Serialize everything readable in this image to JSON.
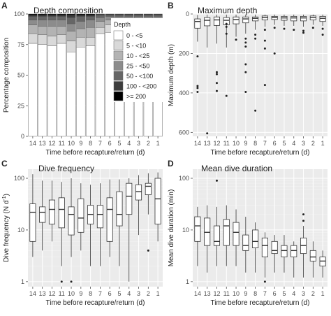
{
  "colors": {
    "panel_bg": "#ebebeb",
    "grid_major": "#ffffff",
    "box_fill": "#ffffff",
    "box_stroke": "#333333",
    "depth_bins": [
      "#ffffff",
      "#d9d9d9",
      "#b3b3b3",
      "#8c8c8c",
      "#666666",
      "#3d3d3d",
      "#000000"
    ]
  },
  "chart_data": [
    {
      "id": "A",
      "letter": "A",
      "type": "bar",
      "title": "Depth composition",
      "xlabel": "Time before recapture/return (d)",
      "ylabel": "Percentage composition",
      "categories": [
        "14",
        "13",
        "12",
        "11",
        "10",
        "9",
        "8",
        "7",
        "6",
        "5",
        "4",
        "3",
        "2",
        "1"
      ],
      "ylim": [
        0,
        100
      ],
      "yticks": [
        0,
        25,
        50,
        75,
        100
      ],
      "legend": {
        "title": "Depth",
        "position": "top-right"
      },
      "series": [
        {
          "name": "0 - <5",
          "values": [
            76,
            75,
            74,
            76,
            69,
            73,
            74,
            84,
            85,
            83,
            83,
            82,
            83,
            88
          ]
        },
        {
          "name": "5 - <10",
          "values": [
            8,
            8,
            8,
            7,
            9,
            8,
            7,
            5,
            6,
            6,
            7,
            7,
            6,
            4
          ]
        },
        {
          "name": "10 - <25",
          "values": [
            7,
            7,
            8,
            7,
            8,
            7,
            8,
            5,
            4,
            5,
            5,
            5,
            5,
            4
          ]
        },
        {
          "name": "25 - <50",
          "values": [
            4,
            5,
            5,
            5,
            6,
            6,
            6,
            3,
            3,
            4,
            3,
            4,
            4,
            2
          ]
        },
        {
          "name": "50 - <100",
          "values": [
            3,
            3,
            3,
            3,
            5,
            4,
            3,
            2,
            1,
            1,
            1,
            1,
            1,
            1
          ]
        },
        {
          "name": "100 - <200",
          "values": [
            1,
            1,
            1,
            1,
            2,
            1,
            1,
            1,
            1,
            1,
            1,
            1,
            1,
            1
          ]
        },
        {
          "name": ">= 200",
          "values": [
            1,
            1,
            1,
            1,
            1,
            1,
            1,
            0,
            0,
            0,
            0,
            0,
            0,
            0
          ]
        }
      ]
    },
    {
      "id": "B",
      "letter": "B",
      "type": "box",
      "title": "Maximum depth",
      "xlabel": "Time before recapture/return (d)",
      "ylabel": "Maximum depth (m)",
      "categories": [
        "14",
        "13",
        "12",
        "11",
        "10",
        "9",
        "8",
        "7",
        "6",
        "5",
        "4",
        "3",
        "2",
        "1"
      ],
      "ylim": [
        0,
        620
      ],
      "yreverse": true,
      "yticks": [
        0,
        200,
        400,
        600
      ],
      "boxes": [
        {
          "low": 5,
          "q1": 25,
          "median": 38,
          "q3": 72,
          "high": 140,
          "outliers": [
            215,
            365,
            375,
            395
          ]
        },
        {
          "low": 3,
          "q1": 18,
          "median": 32,
          "q3": 60,
          "high": 170,
          "outliers": [
            605
          ]
        },
        {
          "low": 3,
          "q1": 15,
          "median": 30,
          "q3": 58,
          "high": 150,
          "outliers": [
            295,
            305,
            350,
            390
          ]
        },
        {
          "low": 3,
          "q1": 18,
          "median": 32,
          "q3": 55,
          "high": 170,
          "outliers": [
            50,
            65,
            100,
            415
          ]
        },
        {
          "low": 3,
          "q1": 15,
          "median": 28,
          "q3": 50,
          "high": 115,
          "outliers": [
            130
          ]
        },
        {
          "low": 3,
          "q1": 15,
          "median": 25,
          "q3": 45,
          "high": 100,
          "outliers": [
            125,
            145,
            165,
            255,
            295,
            395
          ]
        },
        {
          "low": 3,
          "q1": 15,
          "median": 22,
          "q3": 35,
          "high": 80,
          "outliers": [
            105,
            125,
            490
          ]
        },
        {
          "low": 3,
          "q1": 10,
          "median": 18,
          "q3": 30,
          "high": 65,
          "outliers": [
            80,
            135,
            175,
            360
          ]
        },
        {
          "low": 3,
          "q1": 12,
          "median": 18,
          "q3": 28,
          "high": 55,
          "outliers": [
            70,
            200
          ]
        },
        {
          "low": 3,
          "q1": 12,
          "median": 20,
          "q3": 32,
          "high": 60,
          "outliers": [
            75
          ]
        },
        {
          "low": 3,
          "q1": 12,
          "median": 20,
          "q3": 35,
          "high": 60,
          "outliers": [
            80
          ]
        },
        {
          "low": 3,
          "q1": 12,
          "median": 20,
          "q3": 35,
          "high": 65,
          "outliers": [
            85,
            95
          ]
        },
        {
          "low": 3,
          "q1": 10,
          "median": 18,
          "q3": 30,
          "high": 55,
          "outliers": [
            70
          ]
        },
        {
          "low": 3,
          "q1": 12,
          "median": 22,
          "q3": 38,
          "high": 60,
          "outliers": [
            75,
            105
          ]
        }
      ]
    },
    {
      "id": "C",
      "letter": "C",
      "type": "box",
      "title": "Dive frequency",
      "xlabel": "Time before recapture/return (d)",
      "ylabel": "Dive frequency (N d",
      "ylabel_sup": "-1",
      "ylabel_tail": ")",
      "categories": [
        "14",
        "13",
        "12",
        "11",
        "10",
        "9",
        "8",
        "7",
        "6",
        "5",
        "4",
        "3",
        "2",
        "1"
      ],
      "ylog": true,
      "ylim": [
        0.8,
        150
      ],
      "yticks": [
        1,
        10,
        100
      ],
      "boxes": [
        {
          "low": 3,
          "q1": 6,
          "median": 22,
          "q3": 32,
          "high": 120,
          "outliers": []
        },
        {
          "low": 4,
          "q1": 14,
          "median": 22,
          "q3": 28,
          "high": 90,
          "outliers": []
        },
        {
          "low": 6,
          "q1": 13,
          "median": 25,
          "q3": 38,
          "high": 90,
          "outliers": []
        },
        {
          "low": 2,
          "q1": 11,
          "median": 25,
          "q3": 42,
          "high": 85,
          "outliers": [
            1
          ]
        },
        {
          "low": 3,
          "q1": 8,
          "median": 20,
          "q3": 28,
          "high": 100,
          "outliers": [
            1
          ]
        },
        {
          "low": 4,
          "q1": 9,
          "median": 17,
          "q3": 40,
          "high": 80,
          "outliers": []
        },
        {
          "low": 2,
          "q1": 13,
          "median": 20,
          "q3": 30,
          "high": 75,
          "outliers": []
        },
        {
          "low": 2,
          "q1": 11,
          "median": 20,
          "q3": 30,
          "high": 80,
          "outliers": []
        },
        {
          "low": 3,
          "q1": 6,
          "median": 25,
          "q3": 42,
          "high": 95,
          "outliers": []
        },
        {
          "low": 2,
          "q1": 12,
          "median": 20,
          "q3": 55,
          "high": 95,
          "outliers": []
        },
        {
          "low": 1,
          "q1": 20,
          "median": 45,
          "q3": 80,
          "high": 100,
          "outliers": []
        },
        {
          "low": 8,
          "q1": 38,
          "median": 55,
          "q3": 75,
          "high": 115,
          "outliers": []
        },
        {
          "low": 20,
          "q1": 48,
          "median": 70,
          "q3": 80,
          "high": 125,
          "outliers": [
            4
          ]
        },
        {
          "low": 6,
          "q1": 13,
          "median": 40,
          "q3": 100,
          "high": 130,
          "outliers": []
        }
      ]
    },
    {
      "id": "D",
      "letter": "D",
      "type": "box",
      "title": "Mean dive duration",
      "xlabel": "Time before recapture/return (d)",
      "ylabel": "Mean dive duration (min)",
      "categories": [
        "14",
        "13",
        "12",
        "11",
        "10",
        "9",
        "8",
        "7",
        "6",
        "5",
        "4",
        "3",
        "2",
        "1"
      ],
      "ylog": true,
      "ylim": [
        0.8,
        150
      ],
      "yticks": [
        1,
        10,
        100
      ],
      "boxes": [
        {
          "low": 2,
          "q1": 6,
          "median": 12,
          "q3": 18,
          "high": 28,
          "outliers": []
        },
        {
          "low": 1.5,
          "q1": 5,
          "median": 9,
          "q3": 17,
          "high": 30,
          "outliers": []
        },
        {
          "low": 2,
          "q1": 5,
          "median": 6,
          "q3": 12,
          "high": 28,
          "outliers": [
            90
          ]
        },
        {
          "low": 2,
          "q1": 5,
          "median": 12,
          "q3": 16,
          "high": 30,
          "outliers": []
        },
        {
          "low": 2,
          "q1": 5,
          "median": 9,
          "q3": 14,
          "high": 25,
          "outliers": []
        },
        {
          "low": 1.5,
          "q1": 4,
          "median": 5,
          "q3": 8,
          "high": 18,
          "outliers": []
        },
        {
          "low": 1.5,
          "q1": 4.5,
          "median": 6,
          "q3": 10,
          "high": 14,
          "outliers": []
        },
        {
          "low": 1.2,
          "q1": 3,
          "median": 5,
          "q3": 7,
          "high": 9,
          "outliers": [
            1
          ]
        },
        {
          "low": 1.5,
          "q1": 3.5,
          "median": 4,
          "q3": 6,
          "high": 8,
          "outliers": []
        },
        {
          "low": 1.5,
          "q1": 3,
          "median": 4,
          "q3": 5,
          "high": 8,
          "outliers": []
        },
        {
          "low": 1.2,
          "q1": 3,
          "median": 4,
          "q3": 5,
          "high": 6,
          "outliers": []
        },
        {
          "low": 1.2,
          "q1": 3.5,
          "median": 5,
          "q3": 7,
          "high": 12,
          "outliers": [
            20,
            15
          ]
        },
        {
          "low": 1.2,
          "q1": 2.5,
          "median": 3,
          "q3": 4,
          "high": 6,
          "outliers": []
        },
        {
          "low": 1.2,
          "q1": 2,
          "median": 2.5,
          "q3": 3,
          "high": 4,
          "outliers": []
        }
      ]
    }
  ]
}
